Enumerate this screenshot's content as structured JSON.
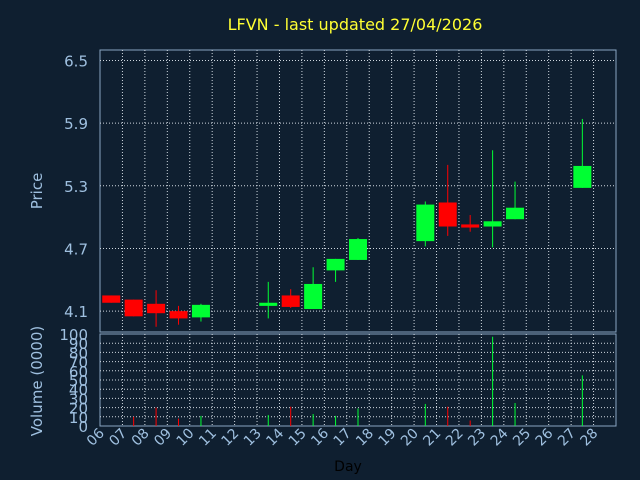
{
  "chart_data": [
    {
      "type": "candlestick",
      "title": "LFVN - last updated 27/04/2026",
      "ylabel": "Price",
      "ylim": [
        3.9,
        6.6
      ],
      "yticks": [
        "6.5",
        "5.9",
        "5.3",
        "4.7",
        "4.1"
      ],
      "ytick_values": [
        6.5,
        5.9,
        5.3,
        4.7,
        4.1
      ],
      "categories": [
        "06",
        "07",
        "08",
        "09",
        "10",
        "11",
        "12",
        "13",
        "14",
        "15",
        "16",
        "17",
        "18",
        "19",
        "20",
        "21",
        "22",
        "23",
        "24",
        "25",
        "26",
        "27",
        "28"
      ],
      "grid": true,
      "up_color": "#00ff33",
      "down_color": "#ff0000",
      "candles": [
        {
          "day": "06",
          "open": 4.25,
          "high": 4.25,
          "low": 4.18,
          "close": 4.18
        },
        {
          "day": "07",
          "open": 4.21,
          "high": 4.21,
          "low": 4.05,
          "close": 4.05
        },
        {
          "day": "08",
          "open": 4.17,
          "high": 4.3,
          "low": 3.95,
          "close": 4.08
        },
        {
          "day": "09",
          "open": 4.1,
          "high": 4.15,
          "low": 3.97,
          "close": 4.03
        },
        {
          "day": "10",
          "open": 4.04,
          "high": 4.17,
          "low": 4.0,
          "close": 4.16
        },
        {
          "day": "13",
          "open": 4.15,
          "high": 4.38,
          "low": 4.03,
          "close": 4.18
        },
        {
          "day": "14",
          "open": 4.25,
          "high": 4.31,
          "low": 4.13,
          "close": 4.14
        },
        {
          "day": "15",
          "open": 4.12,
          "high": 4.52,
          "low": 4.12,
          "close": 4.36
        },
        {
          "day": "16",
          "open": 4.49,
          "high": 4.6,
          "low": 4.38,
          "close": 4.6
        },
        {
          "day": "17",
          "open": 4.59,
          "high": 4.8,
          "low": 4.59,
          "close": 4.79
        },
        {
          "day": "20",
          "open": 4.77,
          "high": 5.15,
          "low": 4.72,
          "close": 5.12
        },
        {
          "day": "21",
          "open": 5.14,
          "high": 5.5,
          "low": 4.82,
          "close": 4.91
        },
        {
          "day": "22",
          "open": 4.93,
          "high": 5.02,
          "low": 4.86,
          "close": 4.9
        },
        {
          "day": "23",
          "open": 4.91,
          "high": 5.64,
          "low": 4.71,
          "close": 4.96
        },
        {
          "day": "24",
          "open": 4.98,
          "high": 5.34,
          "low": 4.98,
          "close": 5.09
        },
        {
          "day": "27",
          "open": 5.28,
          "high": 5.94,
          "low": 5.28,
          "close": 5.49
        }
      ]
    },
    {
      "type": "bar",
      "ylabel": "Volume (0000)",
      "xlabel": "Day",
      "ylim": [
        0,
        100
      ],
      "yticks": [
        "100",
        "90",
        "80",
        "70",
        "60",
        "50",
        "40",
        "30",
        "20",
        "10",
        "0"
      ],
      "ytick_values": [
        100,
        90,
        80,
        70,
        60,
        50,
        40,
        30,
        20,
        10,
        0
      ],
      "volumes": [
        {
          "day": "07",
          "value": 10,
          "dir": "down"
        },
        {
          "day": "08",
          "value": 20,
          "dir": "down"
        },
        {
          "day": "09",
          "value": 8,
          "dir": "down"
        },
        {
          "day": "10",
          "value": 11,
          "dir": "up"
        },
        {
          "day": "13",
          "value": 12,
          "dir": "up"
        },
        {
          "day": "14",
          "value": 21,
          "dir": "down"
        },
        {
          "day": "15",
          "value": 13,
          "dir": "up"
        },
        {
          "day": "16",
          "value": 11,
          "dir": "up"
        },
        {
          "day": "17",
          "value": 19,
          "dir": "up"
        },
        {
          "day": "20",
          "value": 24,
          "dir": "up"
        },
        {
          "day": "21",
          "value": 21,
          "dir": "down"
        },
        {
          "day": "22",
          "value": 6,
          "dir": "down"
        },
        {
          "day": "23",
          "value": 97,
          "dir": "up"
        },
        {
          "day": "24",
          "value": 25,
          "dir": "up"
        },
        {
          "day": "27",
          "value": 55,
          "dir": "up"
        }
      ]
    }
  ]
}
